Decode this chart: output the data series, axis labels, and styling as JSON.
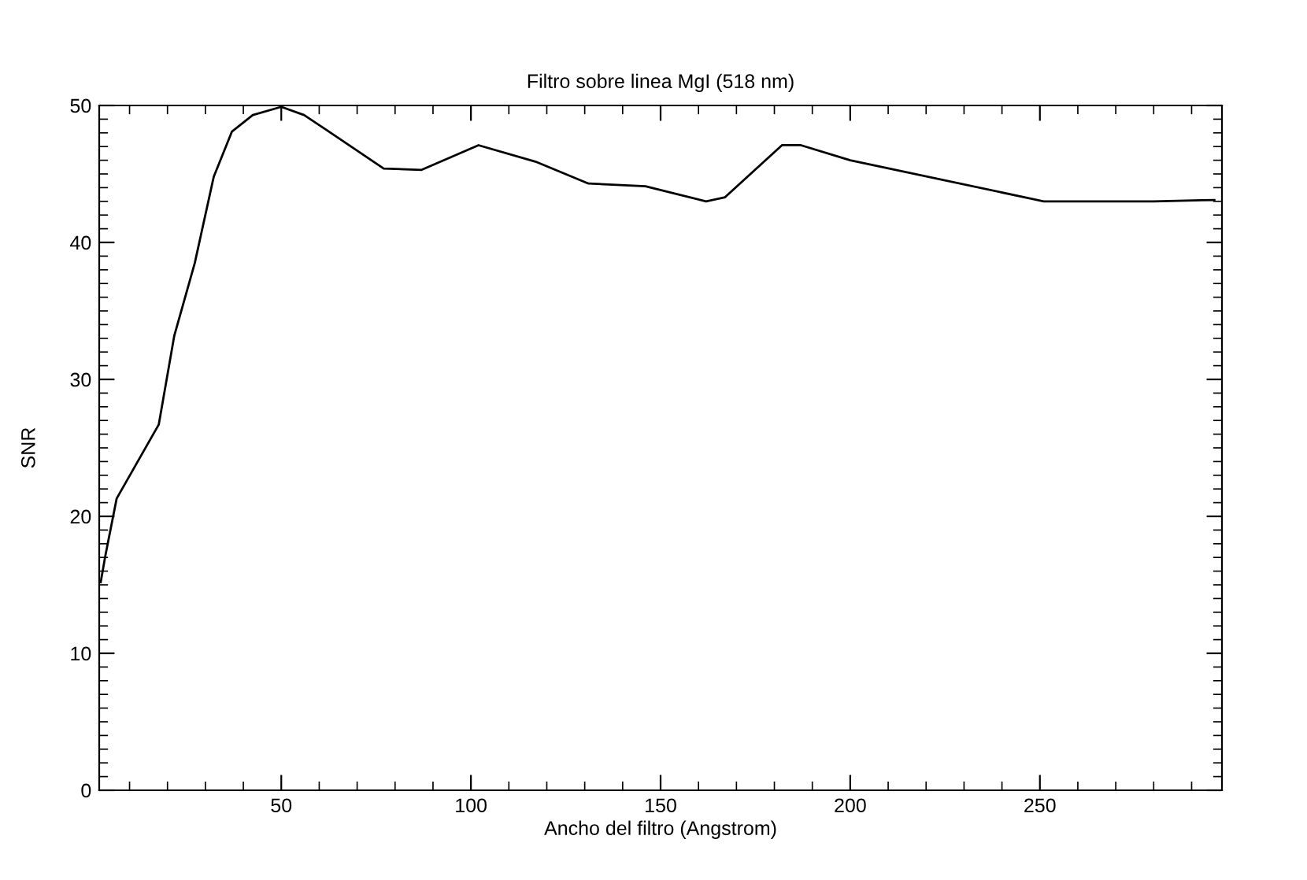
{
  "chart_data": {
    "type": "line",
    "title": "Filtro sobre linea MgI (518 nm)",
    "xlabel": "Ancho del filtro (Angstrom)",
    "ylabel": "SNR",
    "x": [
      2.4,
      3.6,
      6.6,
      17.7,
      21.8,
      27.2,
      32.2,
      37,
      42.5,
      50,
      56,
      62,
      77,
      87,
      102,
      117,
      131,
      146,
      162,
      167,
      182,
      187,
      200,
      251,
      280,
      296
    ],
    "series": [
      {
        "color": "#000000",
        "values": [
          15.2,
          17.1,
          21.3,
          26.7,
          33.2,
          38.5,
          44.8,
          48.1,
          49.3,
          49.9,
          49.3,
          48.2,
          45.4,
          45.3,
          47.1,
          45.9,
          44.3,
          44.1,
          43.0,
          43.3,
          47.1,
          47.1,
          46.0,
          43.0,
          43.0,
          43.1
        ]
      }
    ],
    "xlim": [
      2,
      298
    ],
    "ylim": [
      0,
      50
    ],
    "xticks": [
      50,
      100,
      150,
      200,
      250
    ],
    "yticks": [
      0,
      10,
      20,
      30,
      40,
      50
    ],
    "grid": false,
    "legend": false,
    "marker": "none",
    "line_style": "solid"
  }
}
